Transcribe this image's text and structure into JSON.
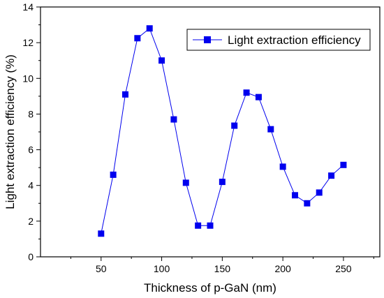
{
  "chart_data": {
    "type": "line",
    "xlabel": "Thickness of p-GaN (nm)",
    "ylabel": "Light extraction efficiency (%)",
    "xlim": [
      0,
      280
    ],
    "ylim": [
      0,
      14
    ],
    "xticks": [
      50,
      100,
      150,
      200,
      250
    ],
    "yticks": [
      0,
      2,
      4,
      6,
      8,
      10,
      12,
      14
    ],
    "grid": false,
    "legend_position": "top-right",
    "series": [
      {
        "name": "Light extraction efficiency",
        "color": "#0000ee",
        "marker": "square",
        "x": [
          50,
          60,
          70,
          80,
          90,
          100,
          110,
          120,
          130,
          140,
          150,
          160,
          170,
          180,
          190,
          200,
          210,
          220,
          230,
          240,
          250
        ],
        "y": [
          1.3,
          4.6,
          9.1,
          12.25,
          12.8,
          11.0,
          7.7,
          4.15,
          1.75,
          1.75,
          4.2,
          7.35,
          9.2,
          8.95,
          7.15,
          5.05,
          3.45,
          3.0,
          3.6,
          4.55,
          5.15
        ]
      }
    ]
  }
}
